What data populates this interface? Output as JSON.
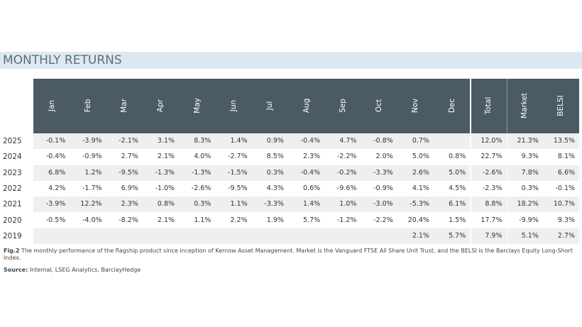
{
  "title": "MONTHLY RETURNS",
  "table": {
    "columns": [
      "Jan",
      "Feb",
      "Mar",
      "Apr",
      "May",
      "Jun",
      "Jul",
      "Aug",
      "Sep",
      "Oct",
      "Nov",
      "Dec",
      "Total",
      "Market",
      "BELSI"
    ],
    "rows": [
      {
        "year": "2025",
        "cells": [
          "-0.1%",
          "-3.9%",
          "-2.1%",
          "3.1%",
          "8.3%",
          "1.4%",
          "0.9%",
          "-0.4%",
          "4.7%",
          "-0.8%",
          "0.7%",
          null,
          "12.0%",
          "21.3%",
          "13.5%"
        ]
      },
      {
        "year": "2024",
        "cells": [
          "-0.4%",
          "-0.9%",
          "2.7%",
          "2.1%",
          "4.0%",
          "-2.7%",
          "8.5%",
          "2.3%",
          "-2.2%",
          "2.0%",
          "5.0%",
          "0.8%",
          "22.7%",
          "9.3%",
          "8.1%"
        ]
      },
      {
        "year": "2023",
        "cells": [
          "6.8%",
          "1.2%",
          "-9.5%",
          "-1.3%",
          "-1.3%",
          "-1.5%",
          "0.3%",
          "-0.4%",
          "-0.2%",
          "-3.3%",
          "2.6%",
          "5.0%",
          "-2.6%",
          "7.8%",
          "6.6%"
        ]
      },
      {
        "year": "2022",
        "cells": [
          "4.2%",
          "-1.7%",
          "6.9%",
          "-1.0%",
          "-2.6%",
          "-9.5%",
          "4.3%",
          "0.6%",
          "-9.6%",
          "-0.9%",
          "4.1%",
          "4.5%",
          "-2.3%",
          "0.3%",
          "-0.1%"
        ]
      },
      {
        "year": "2021",
        "cells": [
          "-3.9%",
          "12.2%",
          "2.3%",
          "0.8%",
          "0.3%",
          "1.1%",
          "-3.3%",
          "1.4%",
          "1.0%",
          "-3.0%",
          "-5.3%",
          "6.1%",
          "8.8%",
          "18.2%",
          "10.7%"
        ]
      },
      {
        "year": "2020",
        "cells": [
          "-0.5%",
          "-4.0%",
          "-8.2%",
          "2.1%",
          "1.1%",
          "2.2%",
          "1.9%",
          "5.7%",
          "-1.2%",
          "-2.2%",
          "20.4%",
          "1.5%",
          "17.7%",
          "-9.9%",
          "9.3%"
        ]
      },
      {
        "year": "2019",
        "cells": [
          null,
          null,
          null,
          null,
          null,
          null,
          null,
          null,
          null,
          null,
          "2.1%",
          "5.7%",
          "7.9%",
          "5.1%",
          "2.7%"
        ]
      }
    ]
  },
  "caption": {
    "label": "Fig.2",
    "text": "The monthly performance of the flagship product since inception of Kernow Asset Management. Market is the Vanguard FTSE All Share Unit Trust, and the BELSI is the Barclays Equity Long-Short Index."
  },
  "source": {
    "label": "Source:",
    "text": "Internal, LSEG Analytics, BarclayHedge"
  }
}
